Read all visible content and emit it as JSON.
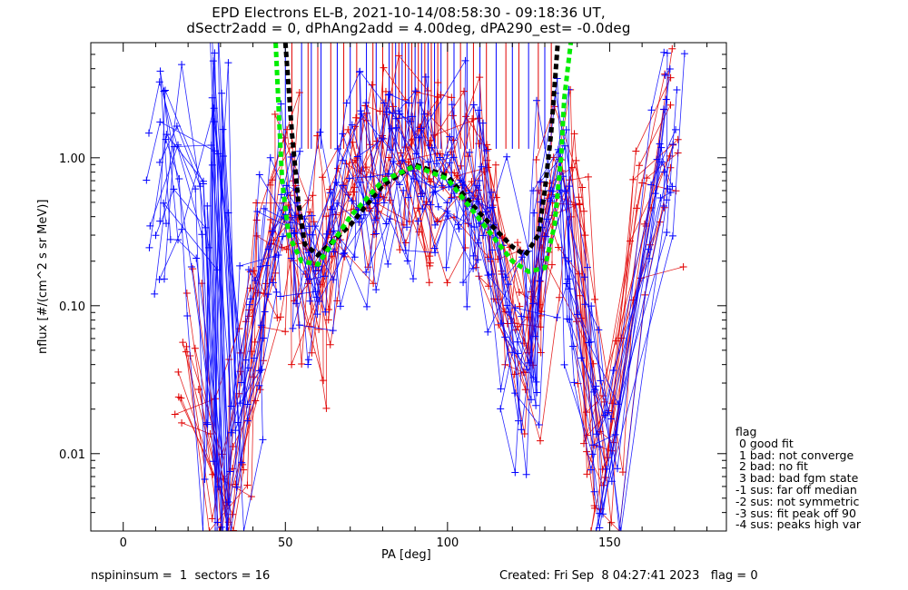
{
  "title": {
    "line1": "EPD Electrons EL-B, 2021-10-14/08:58:30 - 09:18:36 UT,",
    "line2": "dSectr2add = 0, dPhAng2add = 4.00deg, dPA290_est=  -0.0deg"
  },
  "footer": {
    "left": "nspininsum =  1  sectors = 16",
    "right": "Created: Fri Sep  8 04:27:41 2023   flag = 0"
  },
  "flag_legend": {
    "title": "flag",
    "items": [
      " 0 good fit",
      " 1 bad: not converge",
      " 2 bad: no fit",
      " 3 bad: bad fgm state",
      "-1 sus: far off median",
      "-2 sus: not symmetric",
      "-3 sus: fit peak off 90",
      "-4 sus: peaks high var"
    ]
  },
  "chart_data": {
    "type": "line",
    "xlabel": "PA [deg]",
    "ylabel": "nflux [#/(cm^2 s sr MeV)]",
    "xlim": [
      -10,
      186
    ],
    "ylim": [
      0.003,
      6.0
    ],
    "yscale": "log",
    "xticks": [
      0,
      50,
      100,
      150
    ],
    "xtick_labels": [
      "0",
      "50",
      "100",
      "150"
    ],
    "yticks": [
      0.01,
      0.1,
      1.0
    ],
    "ytick_labels": [
      "0.01",
      "0.10",
      "1.00"
    ],
    "series": [
      {
        "color": "#e00000",
        "style": "lines+plus markers",
        "points": [
          [
            20,
            0.06
          ],
          [
            30,
            0.005
          ],
          [
            35,
            0.02
          ],
          [
            40,
            0.05
          ],
          [
            45,
            0.2
          ],
          [
            50,
            0.6
          ],
          [
            55,
            0.25
          ],
          [
            60,
            0.1
          ],
          [
            65,
            0.3
          ],
          [
            70,
            0.6
          ],
          [
            75,
            0.85
          ],
          [
            80,
            0.9
          ],
          [
            85,
            0.9
          ],
          [
            90,
            0.95
          ],
          [
            95,
            0.9
          ],
          [
            100,
            0.85
          ],
          [
            105,
            0.7
          ],
          [
            110,
            0.6
          ],
          [
            115,
            0.3
          ],
          [
            120,
            0.1
          ],
          [
            125,
            0.05
          ],
          [
            130,
            0.3
          ],
          [
            135,
            0.6
          ],
          [
            140,
            0.2
          ],
          [
            145,
            0.02
          ],
          [
            150,
            0.012
          ],
          [
            160,
            0.5
          ],
          [
            170,
            1.4
          ]
        ]
      },
      {
        "color": "#0000ff",
        "style": "lines+plus markers",
        "points": [
          [
            10,
            0.45
          ],
          [
            15,
            1.3
          ],
          [
            25,
            0.5
          ],
          [
            28,
            0.006
          ],
          [
            30,
            2.2
          ],
          [
            35,
            0.01
          ],
          [
            40,
            0.05
          ],
          [
            45,
            0.3
          ],
          [
            50,
            0.5
          ],
          [
            55,
            0.2
          ],
          [
            60,
            0.2
          ],
          [
            65,
            0.35
          ],
          [
            70,
            0.6
          ],
          [
            75,
            0.85
          ],
          [
            80,
            0.9
          ],
          [
            85,
            0.9
          ],
          [
            90,
            0.93
          ],
          [
            95,
            0.9
          ],
          [
            100,
            0.8
          ],
          [
            105,
            0.65
          ],
          [
            110,
            0.5
          ],
          [
            115,
            0.25
          ],
          [
            120,
            0.08
          ],
          [
            125,
            0.03
          ],
          [
            130,
            0.4
          ],
          [
            135,
            0.9
          ],
          [
            140,
            0.1
          ],
          [
            145,
            0.015
          ],
          [
            150,
            0.009
          ],
          [
            165,
            0.6
          ],
          [
            168,
            1.3
          ]
        ]
      },
      {
        "color": "#000000",
        "style": "dotted fit",
        "points": [
          [
            50,
            6.0
          ],
          [
            52,
            1.5
          ],
          [
            54,
            0.5
          ],
          [
            56,
            0.26
          ],
          [
            60,
            0.22
          ],
          [
            70,
            0.35
          ],
          [
            80,
            0.65
          ],
          [
            90,
            0.9
          ],
          [
            100,
            0.75
          ],
          [
            110,
            0.42
          ],
          [
            120,
            0.25
          ],
          [
            124,
            0.22
          ],
          [
            128,
            0.3
          ],
          [
            130,
            0.6
          ],
          [
            132,
            1.5
          ],
          [
            134,
            6.0
          ]
        ]
      },
      {
        "color": "#00ee00",
        "style": "dotted fit",
        "points": [
          [
            47,
            6.0
          ],
          [
            48,
            2.0
          ],
          [
            49,
            0.7
          ],
          [
            51,
            0.3
          ],
          [
            55,
            0.2
          ],
          [
            60,
            0.19
          ],
          [
            70,
            0.4
          ],
          [
            80,
            0.7
          ],
          [
            90,
            0.88
          ],
          [
            100,
            0.72
          ],
          [
            110,
            0.38
          ],
          [
            120,
            0.2
          ],
          [
            125,
            0.17
          ],
          [
            130,
            0.18
          ],
          [
            133,
            0.35
          ],
          [
            135,
            1.0
          ],
          [
            136,
            2.5
          ],
          [
            138,
            6.0
          ]
        ]
      }
    ],
    "vertical_bars": {
      "colors": [
        "#0000ff",
        "#e00000"
      ],
      "y_from": 1.15,
      "y_to": 6.0,
      "x": [
        50,
        52,
        55,
        57,
        58,
        60,
        61,
        64,
        66,
        68,
        70,
        72,
        75,
        77,
        78,
        80,
        82,
        83,
        84,
        85,
        86,
        87,
        88,
        89,
        90,
        91,
        92,
        93,
        94,
        95,
        96,
        97,
        98,
        100,
        102,
        104,
        106,
        108,
        110,
        112,
        115,
        118,
        120,
        122,
        125,
        128,
        130,
        132
      ]
    }
  }
}
